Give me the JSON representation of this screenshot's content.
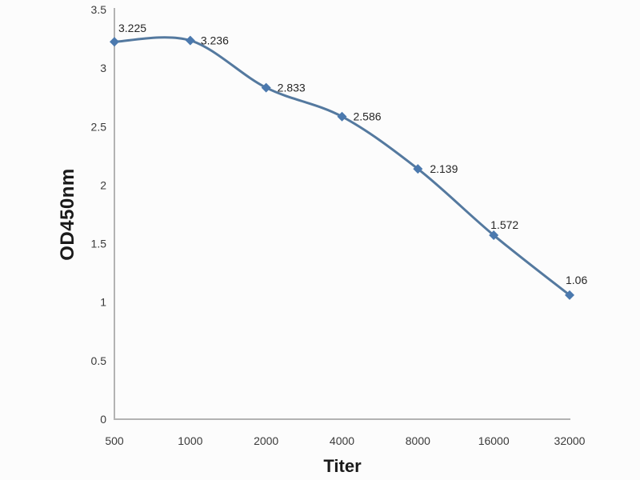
{
  "chart_data": {
    "type": "line",
    "title": "",
    "xlabel": "Titer",
    "ylabel": "OD450nm",
    "categories": [
      "500",
      "1000",
      "2000",
      "4000",
      "8000",
      "16000",
      "32000"
    ],
    "series": [
      {
        "name": "OD450nm",
        "values": [
          3.225,
          3.236,
          2.833,
          2.586,
          2.139,
          1.572,
          1.06
        ]
      }
    ],
    "data_labels": [
      "3.225",
      "3.236",
      "2.833",
      "2.586",
      "2.139",
      "1.572",
      "1.06"
    ],
    "ylim": [
      0,
      3.5
    ],
    "y_tick_step": 0.5,
    "y_tick_labels": [
      "0",
      "0.5",
      "1",
      "1.5",
      "2",
      "2.5",
      "3",
      "3.5"
    ],
    "grid": false,
    "legend_position": "none",
    "line_smooth": true,
    "marker_shape": "diamond",
    "colors": {
      "line": "#54799f",
      "marker": "#4b79ae",
      "axis": "#b3b3b3",
      "tick_text": "#3a3a3a",
      "data_label_text": "#262626",
      "background": "#fcfcfc"
    }
  }
}
